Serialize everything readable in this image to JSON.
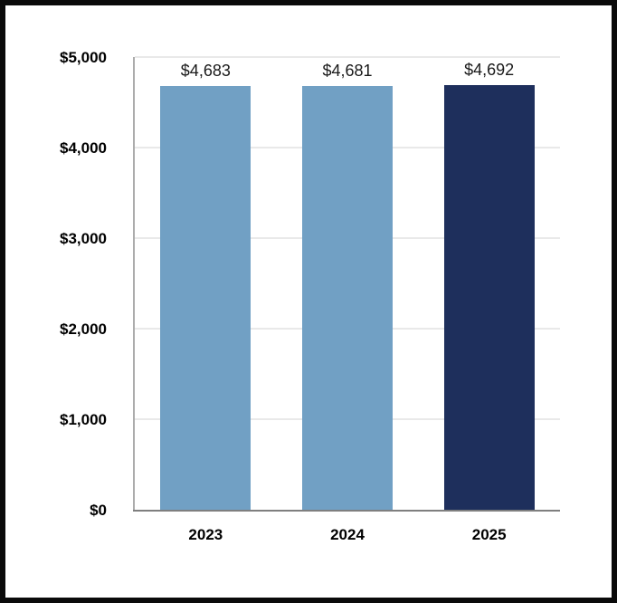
{
  "chart_data": {
    "type": "bar",
    "categories": [
      "2023",
      "2024",
      "2025"
    ],
    "values": [
      4683,
      4681,
      4692
    ],
    "data_labels": [
      "$4,683",
      "$4,681",
      "$4,692"
    ],
    "bar_colors": [
      "#71A0C4",
      "#71A0C4",
      "#1E2F5C"
    ],
    "title": "",
    "xlabel": "",
    "ylabel": "",
    "ylim": [
      0,
      5000
    ],
    "yticks": [
      0,
      1000,
      2000,
      3000,
      4000,
      5000
    ],
    "ytick_labels": [
      "$0",
      "$1,000",
      "$2,000",
      "$3,000",
      "$4,000",
      "$5,000"
    ],
    "grid": true,
    "legend": false
  },
  "colors": {
    "background": "#ffffff",
    "frame_border": "#0a0a0a",
    "gridline": "#e9e9e9",
    "y_axis_line": "#acacac",
    "baseline": "#7f7f7f",
    "tick_label": "#000000",
    "data_label": "#1a1a1a"
  }
}
